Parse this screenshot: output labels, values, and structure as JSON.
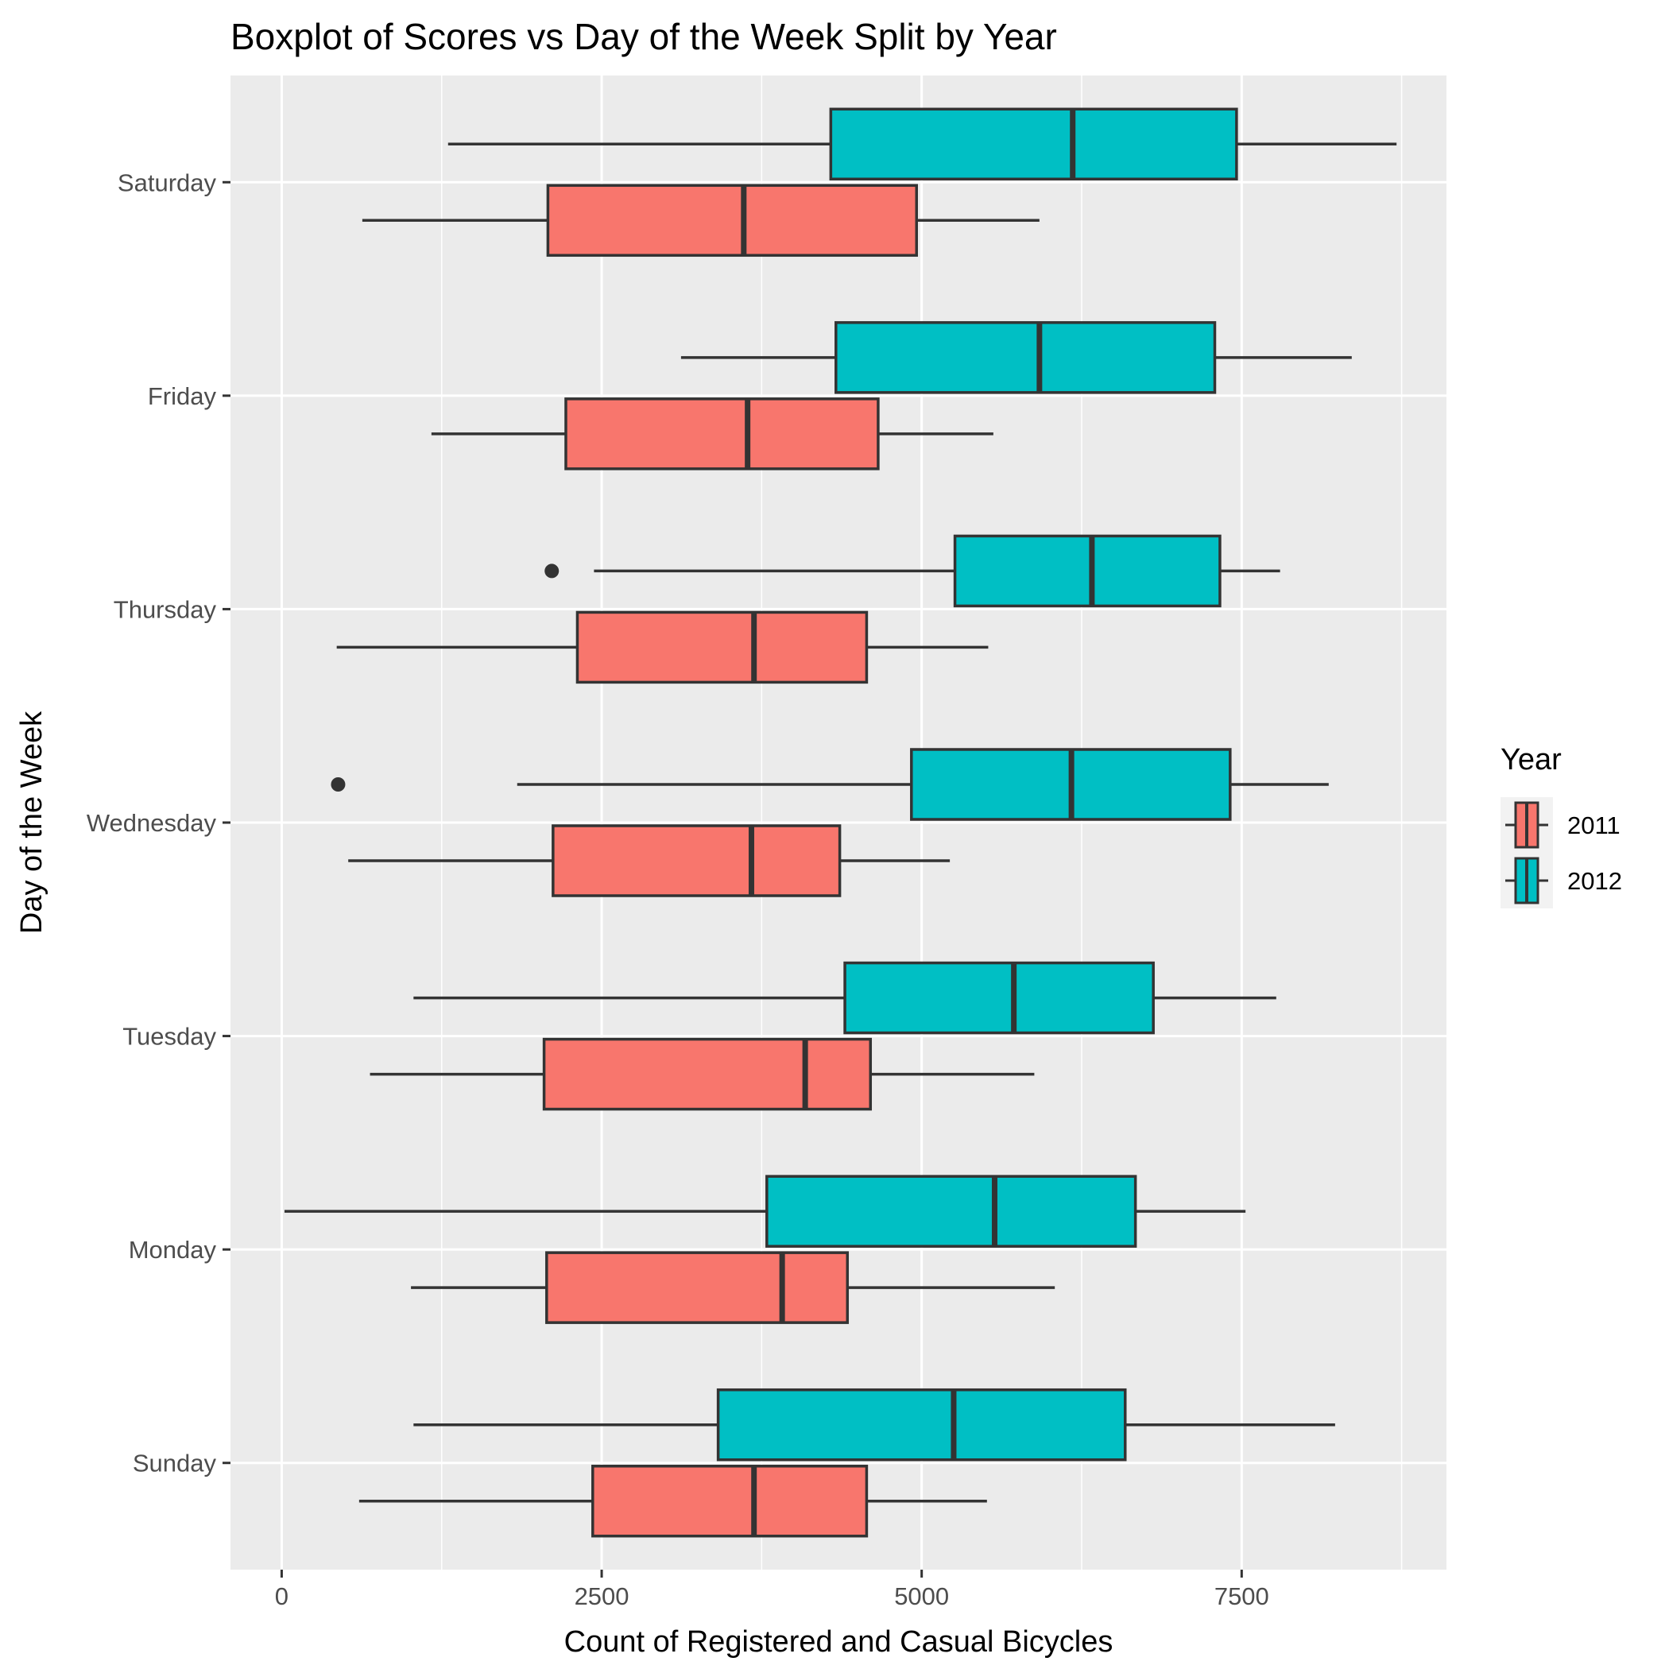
{
  "chart_data": {
    "type": "boxplot",
    "orientation": "horizontal",
    "title": "Boxplot of Scores vs Day of the Week Split by Year",
    "xlabel": "Count of Registered and Casual Bicycles",
    "ylabel": "Day of the Week",
    "xlim": [
      -400,
      9100
    ],
    "x_ticks": [
      0,
      2500,
      5000,
      7500
    ],
    "x_tick_labels": [
      "0",
      "2500",
      "5000",
      "7500"
    ],
    "categories": [
      "Sunday",
      "Monday",
      "Tuesday",
      "Wednesday",
      "Thursday",
      "Friday",
      "Saturday"
    ],
    "grid": true,
    "legend": {
      "title": "Year",
      "placement": "right"
    },
    "series": [
      {
        "name": "2011",
        "color": "#F8766D",
        "boxes": [
          {
            "day": "Sunday",
            "whisker_low": 605,
            "q1": 2430,
            "median": 3690,
            "q3": 4570,
            "whisker_high": 5510,
            "outliers": []
          },
          {
            "day": "Monday",
            "whisker_low": 1010,
            "q1": 2070,
            "median": 3910,
            "q3": 4420,
            "whisker_high": 6040,
            "outliers": []
          },
          {
            "day": "Tuesday",
            "whisker_low": 690,
            "q1": 2050,
            "median": 4090,
            "q3": 4600,
            "whisker_high": 5880,
            "outliers": []
          },
          {
            "day": "Wednesday",
            "whisker_low": 520,
            "q1": 2120,
            "median": 3670,
            "q3": 4360,
            "whisker_high": 5220,
            "outliers": []
          },
          {
            "day": "Thursday",
            "whisker_low": 430,
            "q1": 2310,
            "median": 3690,
            "q3": 4570,
            "whisker_high": 5520,
            "outliers": []
          },
          {
            "day": "Friday",
            "whisker_low": 1170,
            "q1": 2220,
            "median": 3640,
            "q3": 4660,
            "whisker_high": 5560,
            "outliers": []
          },
          {
            "day": "Saturday",
            "whisker_low": 630,
            "q1": 2080,
            "median": 3610,
            "q3": 4960,
            "whisker_high": 5920,
            "outliers": []
          }
        ]
      },
      {
        "name": "2012",
        "color": "#00BFC4",
        "boxes": [
          {
            "day": "Sunday",
            "whisker_low": 1030,
            "q1": 3410,
            "median": 5250,
            "q3": 6590,
            "whisker_high": 8230,
            "outliers": []
          },
          {
            "day": "Monday",
            "whisker_low": 22,
            "q1": 3790,
            "median": 5570,
            "q3": 6670,
            "whisker_high": 7530,
            "outliers": []
          },
          {
            "day": "Tuesday",
            "whisker_low": 1030,
            "q1": 4400,
            "median": 5720,
            "q3": 6810,
            "whisker_high": 7770,
            "outliers": []
          },
          {
            "day": "Wednesday",
            "whisker_low": 1840,
            "q1": 4920,
            "median": 6170,
            "q3": 7410,
            "whisker_high": 8180,
            "outliers": [
              441
            ]
          },
          {
            "day": "Thursday",
            "whisker_low": 2440,
            "q1": 5260,
            "median": 6330,
            "q3": 7330,
            "whisker_high": 7800,
            "outliers": [
              2110
            ]
          },
          {
            "day": "Friday",
            "whisker_low": 3120,
            "q1": 4330,
            "median": 5920,
            "q3": 7290,
            "whisker_high": 8360,
            "outliers": []
          },
          {
            "day": "Saturday",
            "whisker_low": 1300,
            "q1": 4290,
            "median": 6180,
            "q3": 7460,
            "whisker_high": 8710,
            "outliers": []
          }
        ]
      }
    ]
  }
}
